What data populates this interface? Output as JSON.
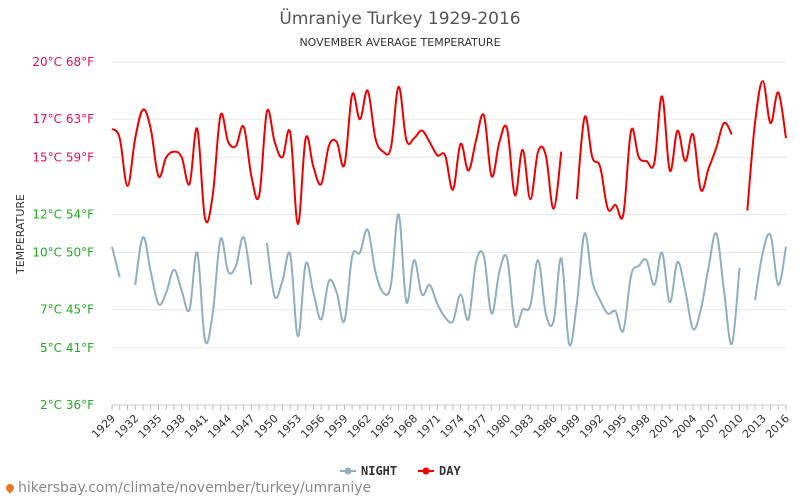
{
  "chart_data": {
    "type": "line",
    "title": "Ümraniye Turkey 1929-2016",
    "subtitle": "NOVEMBER AVERAGE TEMPERATURE",
    "ylabel": "TEMPERATURE",
    "ylim": [
      2,
      20
    ],
    "y_ticks": [
      {
        "value": 20,
        "label": "20°C 68°F"
      },
      {
        "value": 17,
        "label": "17°C 63°F"
      },
      {
        "value": 15,
        "label": "15°C 59°F"
      },
      {
        "value": 12,
        "label": "12°C 54°F"
      },
      {
        "value": 10,
        "label": "10°C 50°F"
      },
      {
        "value": 7,
        "label": "7°C 45°F"
      },
      {
        "value": 5,
        "label": "5°C 41°F"
      },
      {
        "value": 2,
        "label": "2°C 36°F"
      }
    ],
    "x_ticks": [
      "1929",
      "1932",
      "1935",
      "1938",
      "1941",
      "1944",
      "1947",
      "1950",
      "1953",
      "1956",
      "1959",
      "1962",
      "1965",
      "1968",
      "1971",
      "1974",
      "1977",
      "1980",
      "1983",
      "1986",
      "1989",
      "1992",
      "1995",
      "1998",
      "2001",
      "2004",
      "2007",
      "2010",
      "2013",
      "2016"
    ],
    "x_start": 1929,
    "x_end": 2016,
    "series": [
      {
        "name": "DAY",
        "color": "#ee0000",
        "values": [
          16.5,
          16.0,
          13.5,
          16.0,
          17.5,
          16.5,
          14.0,
          15.0,
          15.3,
          15.0,
          13.6,
          16.5,
          11.8,
          13.0,
          17.2,
          15.8,
          15.6,
          16.6,
          14.0,
          13.0,
          17.4,
          15.8,
          15.0,
          16.3,
          11.5,
          16.0,
          14.5,
          13.6,
          15.6,
          15.8,
          14.6,
          18.3,
          17.0,
          18.5,
          16.0,
          15.3,
          15.5,
          18.7,
          15.9,
          16.0,
          16.4,
          15.8,
          15.1,
          15.1,
          13.3,
          15.7,
          14.3,
          15.9,
          17.2,
          14.0,
          15.8,
          16.5,
          13.0,
          15.4,
          12.8,
          15.3,
          15.1,
          12.3,
          15.3,
          null,
          12.8,
          17.1,
          15.0,
          14.5,
          12.3,
          12.5,
          12.0,
          16.4,
          15.0,
          14.8,
          14.7,
          18.2,
          14.3,
          16.4,
          14.8,
          16.2,
          13.3,
          14.4,
          15.5,
          16.8,
          16.2,
          null,
          12.2,
          16.8,
          19.0,
          16.8,
          18.4,
          16.0
        ]
      },
      {
        "name": "NIGHT",
        "color": "#90aebb",
        "values": [
          10.3,
          8.7,
          null,
          8.3,
          10.8,
          9.0,
          7.3,
          7.9,
          9.1,
          8.0,
          7.0,
          10.0,
          5.4,
          6.8,
          10.7,
          9.0,
          9.3,
          10.8,
          8.3,
          null,
          10.5,
          7.7,
          8.5,
          9.9,
          5.6,
          9.4,
          7.9,
          6.5,
          8.5,
          7.9,
          6.4,
          9.8,
          10.0,
          11.2,
          9.0,
          7.9,
          8.3,
          12.0,
          7.4,
          9.6,
          7.8,
          8.3,
          7.3,
          6.6,
          6.4,
          7.8,
          6.5,
          9.5,
          9.8,
          6.8,
          9.0,
          9.7,
          6.2,
          7.0,
          7.2,
          9.6,
          6.8,
          6.4,
          9.7,
          5.2,
          7.3,
          11.0,
          8.5,
          7.5,
          6.8,
          6.9,
          5.9,
          8.8,
          9.3,
          9.6,
          8.3,
          10.0,
          7.4,
          9.5,
          8.0,
          6.0,
          7.0,
          9.2,
          11.0,
          8.0,
          5.2,
          9.2,
          null,
          7.5,
          10.0,
          10.9,
          8.3,
          10.3
        ]
      }
    ],
    "legend": [
      {
        "name": "NIGHT",
        "color": "#90aebb"
      },
      {
        "name": "DAY",
        "color": "#ee0000"
      }
    ],
    "legend_position": "bottom-center",
    "y_label_colors": {
      "warm": "#dd1155",
      "cool": "#22aa22"
    }
  },
  "watermark": "hikersbay.com/climate/november/turkey/umraniye"
}
